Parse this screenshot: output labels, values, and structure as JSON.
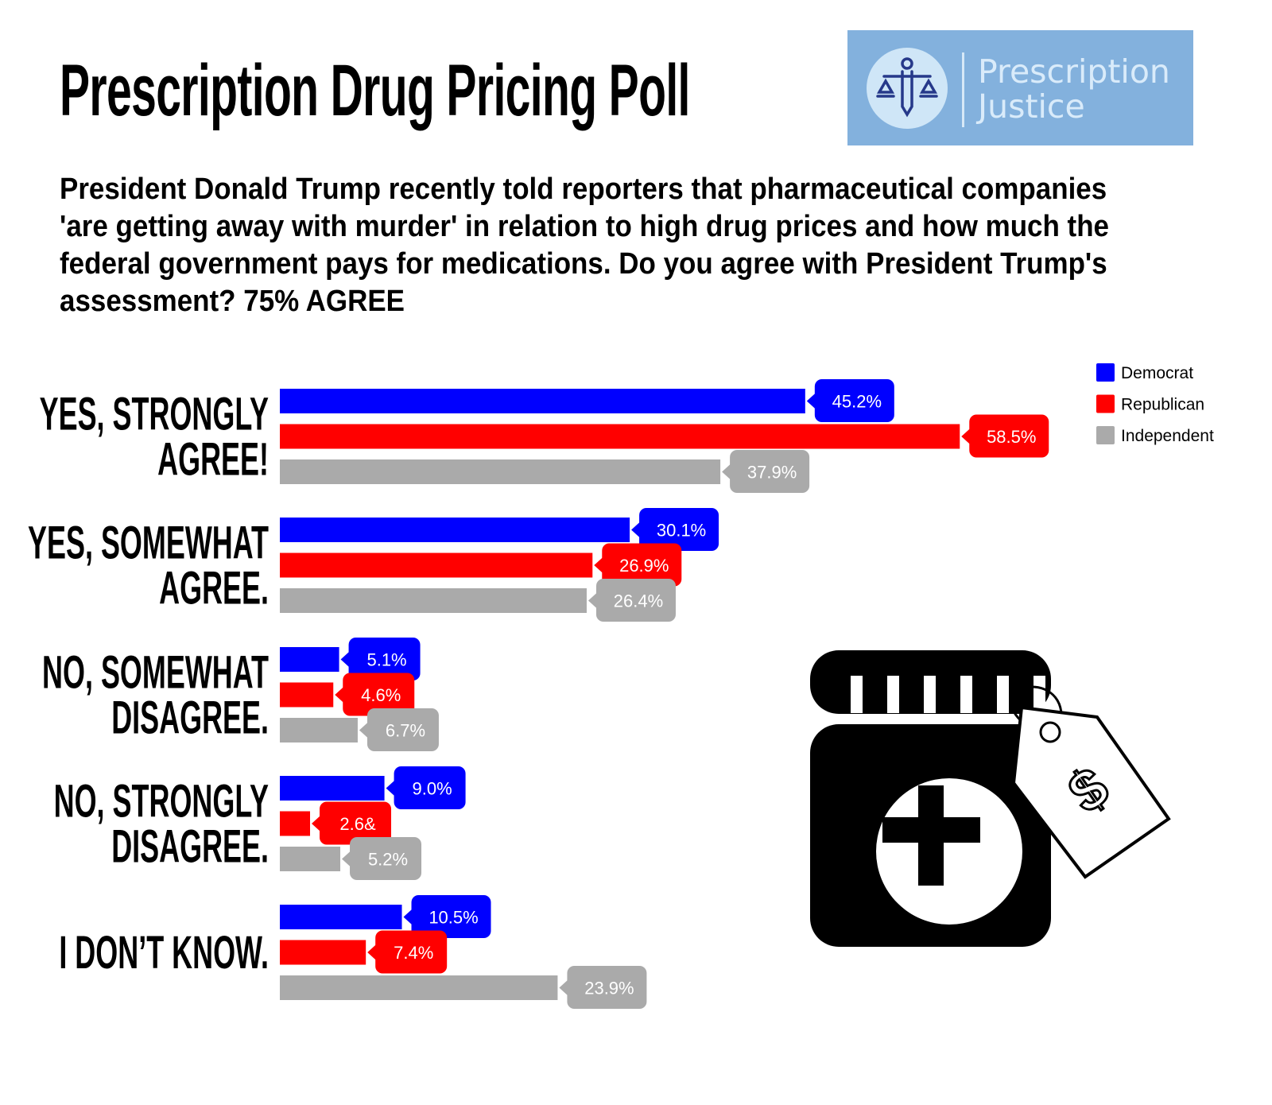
{
  "header": {
    "title": "Prescription Drug Pricing Poll",
    "logo": {
      "icon": "scales-of-justice-icon",
      "line1": "Prescription",
      "line2": "Justice"
    }
  },
  "question": "President Donald Trump recently told reporters that pharmaceutical companies 'are getting away with murder' in relation to high drug prices and how much the federal government pays for medications. Do you agree with President Trump's assessment? 75% AGREE",
  "illustration": {
    "icon": "medicine-jar-with-price-tag-icon",
    "tag_symbol": "$"
  },
  "chart_data": {
    "type": "bar",
    "orientation": "horizontal",
    "title": "",
    "xlabel": "",
    "ylabel": "",
    "xlim": [
      0,
      60
    ],
    "grid": false,
    "legend_position": "top-right",
    "categories": [
      [
        "YES, STRONGLY",
        "AGREE!"
      ],
      [
        "YES, SOMEWHAT",
        "AGREE."
      ],
      [
        "NO, SOMEWHAT",
        "DISAGREE."
      ],
      [
        "NO, STRONGLY",
        "DISAGREE."
      ],
      [
        "I  DON’T KNOW."
      ]
    ],
    "series": [
      {
        "name": "Democrat",
        "color": "#0000ff",
        "values": [
          45.2,
          30.1,
          5.1,
          9.0,
          10.5
        ],
        "labels": [
          "45.2%",
          "30.1%",
          "5.1%",
          "9.0%",
          "10.5%"
        ]
      },
      {
        "name": "Republican",
        "color": "#ff0000",
        "values": [
          58.5,
          26.9,
          4.6,
          2.6,
          7.4
        ],
        "labels": [
          "58.5%",
          "26.9%",
          "4.6%",
          "2.6&",
          "7.4%"
        ]
      },
      {
        "name": "Independent",
        "color": "#aaaaaa",
        "values": [
          37.9,
          26.4,
          6.7,
          5.2,
          23.9
        ],
        "labels": [
          "37.9%",
          "26.4%",
          "6.7%",
          "5.2%",
          "23.9%"
        ]
      }
    ]
  }
}
